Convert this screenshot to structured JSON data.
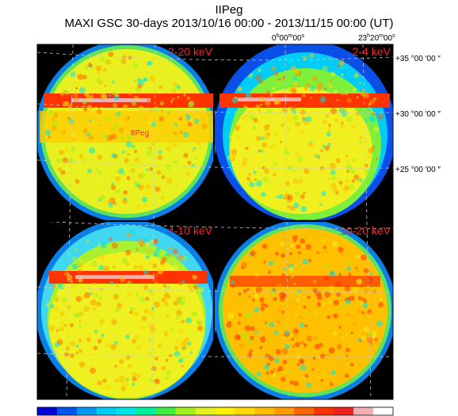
{
  "title": "IIPeg",
  "subtitle": "MAXI GSC 30-days 2013/10/16 00:00 - 2013/11/15 00:00 (UT)",
  "ra_labels": [
    {
      "h": "0",
      "m": "00",
      "s": "00"
    },
    {
      "h": "23",
      "m": "20",
      "s": "00"
    }
  ],
  "dec_labels": [
    "+35 °00 ′00 ″",
    "+30 °00 ′00 ″",
    "+25 °00 ′00 ″"
  ],
  "panels": [
    {
      "band": "2-20 keV",
      "profile": "wide"
    },
    {
      "band": "2-4 keV",
      "profile": "soft"
    },
    {
      "band": "4-10 keV",
      "profile": "mid"
    },
    {
      "band": "10-20 keV",
      "profile": "hard"
    }
  ],
  "source_label": "IIPeg",
  "colorbar": [
    "#0000d8",
    "#0055f0",
    "#0099f5",
    "#00ccf5",
    "#00e6e6",
    "#00f0a0",
    "#40ee40",
    "#a0f020",
    "#e0f020",
    "#fff000",
    "#ffd800",
    "#ffbb00",
    "#ff9900",
    "#ff6600",
    "#ff3300",
    "#ee2222",
    "#f4b0b0",
    "#ffffff"
  ],
  "colors": {
    "background": "#000000",
    "source_marker": "#ff2020",
    "band_label": "#ff2020",
    "grid": "#c8c8c8"
  }
}
